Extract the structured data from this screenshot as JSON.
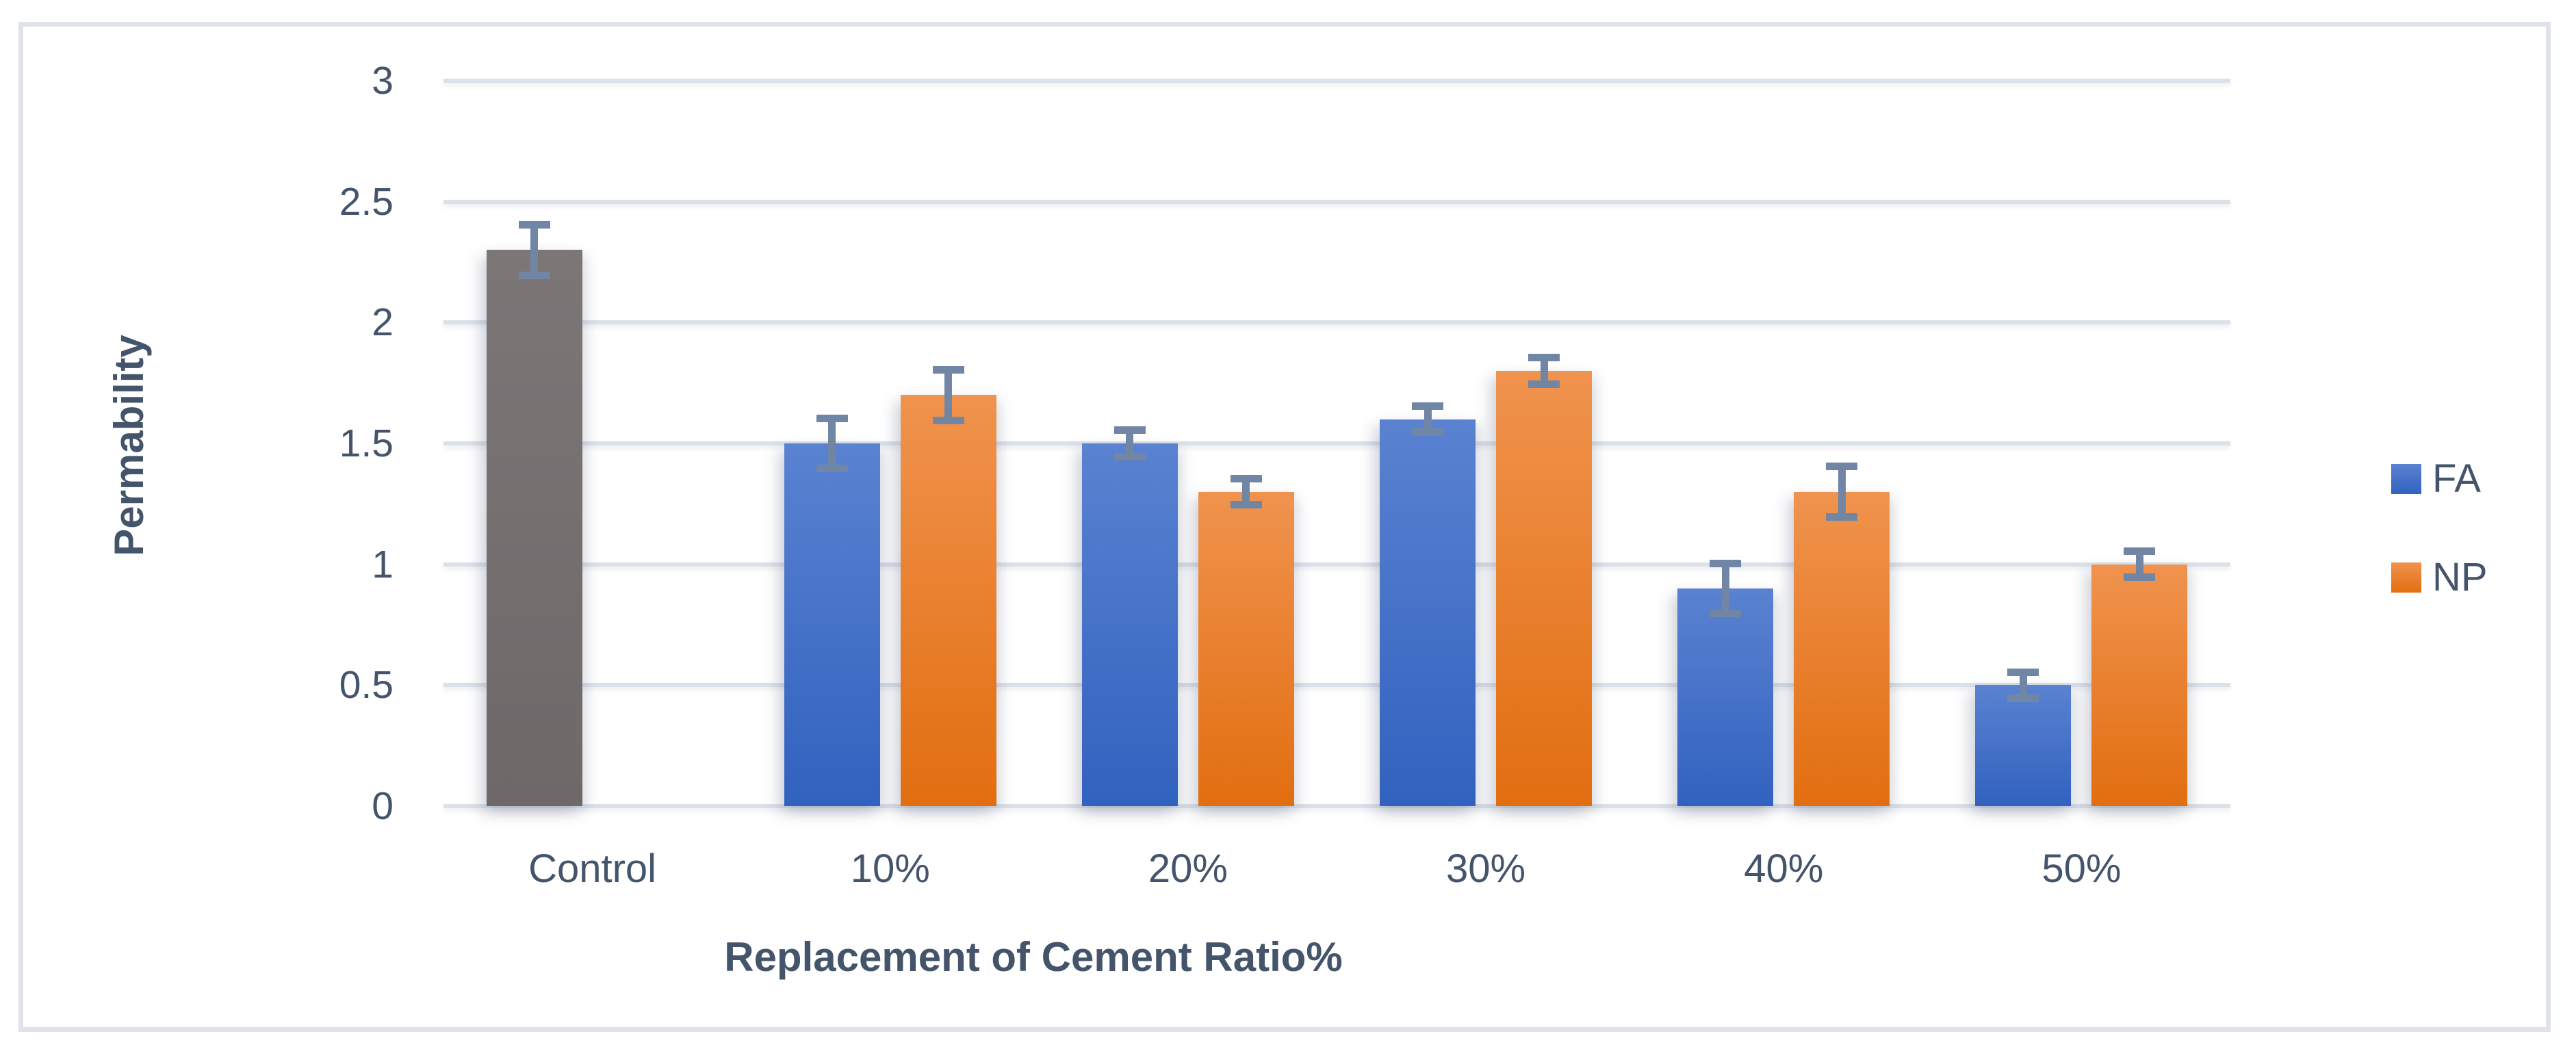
{
  "figure": {
    "background": "#ffffff",
    "border_color": "#dfe3e9",
    "text_color": "#44546a"
  },
  "chart_data": {
    "type": "bar",
    "title": "",
    "xlabel": "Replacement of Cement Ratio%",
    "ylabel": "Permability",
    "categories": [
      "Control",
      "10%",
      "20%",
      "30%",
      "40%",
      "50%"
    ],
    "series": [
      {
        "name": "FA",
        "color_top": "#5a82d1",
        "color_bottom": "#3162bf",
        "values": [
          2.3,
          1.5,
          1.5,
          1.6,
          0.9,
          0.5
        ],
        "errors": [
          0.1,
          0.1,
          0.05,
          0.05,
          0.1,
          0.05
        ]
      },
      {
        "name": "NP",
        "color_top": "#f0934e",
        "color_bottom": "#e26e10",
        "values": [
          null,
          1.7,
          1.3,
          1.8,
          1.3,
          1.0
        ],
        "errors": [
          null,
          0.1,
          0.05,
          0.05,
          0.1,
          0.05
        ]
      }
    ],
    "control_override": {
      "category": "Control",
      "series": "FA",
      "color_top": "#7c7677",
      "color_bottom": "#6e6869"
    },
    "ylim": [
      0,
      3
    ],
    "yticks": [
      "0",
      "0.5",
      "1",
      "1.5",
      "2",
      "2.5",
      "3"
    ],
    "grid": true,
    "grid_color": "#dce1e9",
    "error_color": "#7086a4",
    "legend_position": "right",
    "legend_items": [
      "FA",
      "NP"
    ]
  }
}
